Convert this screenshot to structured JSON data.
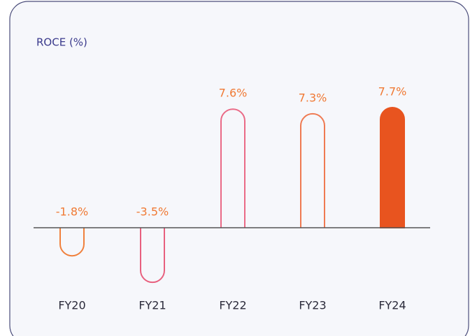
{
  "chart_data": {
    "type": "bar",
    "title": "ROCE (%)",
    "categories": [
      "FY20",
      "FY21",
      "FY22",
      "FY23",
      "FY24"
    ],
    "values": [
      -1.8,
      -3.5,
      7.6,
      7.3,
      7.7
    ],
    "value_labels": [
      "-1.8%",
      "-3.5%",
      "7.6%",
      "7.3%",
      "7.7%"
    ],
    "colors": [
      "#f0803c",
      "#e8607e",
      "#ea6a86",
      "#ef7a52",
      "#e8541f"
    ],
    "filled": [
      false,
      false,
      false,
      false,
      true
    ],
    "label_color": "#f07a35"
  }
}
